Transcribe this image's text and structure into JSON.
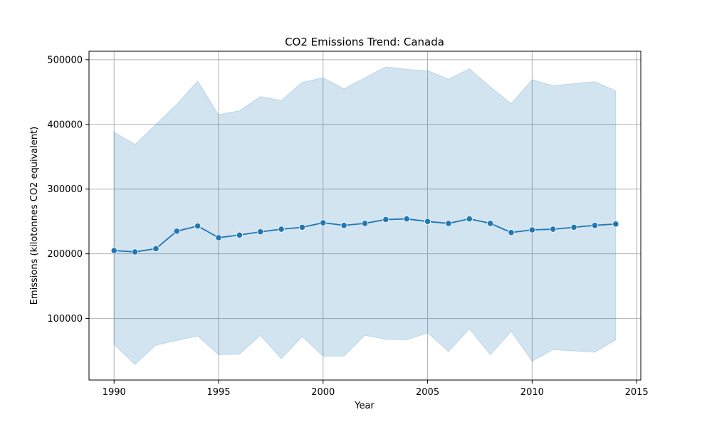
{
  "chart_data": {
    "type": "line",
    "title": "CO2 Emissions Trend: Canada",
    "xlabel": "Year",
    "ylabel": "Emissions (kilotonnes CO2 equivalent)",
    "xlim": [
      1988.8,
      2015.2
    ],
    "ylim": [
      5000,
      513000
    ],
    "x_ticks": [
      1990,
      1995,
      2000,
      2005,
      2010,
      2015
    ],
    "y_ticks": [
      100000,
      200000,
      300000,
      400000,
      500000
    ],
    "x_tick_labels": [
      "1990",
      "1995",
      "2000",
      "2005",
      "2010",
      "2015"
    ],
    "y_tick_labels": [
      "100000",
      "200000",
      "300000",
      "400000",
      "500000"
    ],
    "grid": true,
    "line_color": "#1f77b4",
    "band_color": "#1f77b4",
    "series": [
      {
        "x": [
          1990,
          1991,
          1992,
          1993,
          1994,
          1995,
          1996,
          1997,
          1998,
          1999,
          2000,
          2001,
          2002,
          2003,
          2004,
          2005,
          2006,
          2007,
          2008,
          2009,
          2010,
          2011,
          2012,
          2013,
          2014
        ],
        "y": [
          205000,
          203000,
          208000,
          235000,
          243000,
          225000,
          229000,
          234000,
          238000,
          241000,
          248000,
          244000,
          247000,
          253000,
          254000,
          250000,
          247000,
          254000,
          247000,
          233000,
          237000,
          238000,
          241000,
          244000,
          246000
        ],
        "upper": [
          388000,
          369000,
          400000,
          431000,
          467000,
          415000,
          421000,
          443000,
          437000,
          465000,
          472000,
          455000,
          472000,
          489000,
          485000,
          483000,
          470000,
          486000,
          458000,
          432000,
          469000,
          460000,
          463000,
          466000,
          452000
        ],
        "lower": [
          60000,
          29000,
          59000,
          66000,
          73000,
          44000,
          45000,
          74000,
          38000,
          72000,
          42000,
          42000,
          74000,
          68000,
          67000,
          78000,
          49000,
          84000,
          44000,
          80000,
          34000,
          52000,
          50000,
          48000,
          67000
        ]
      }
    ]
  }
}
